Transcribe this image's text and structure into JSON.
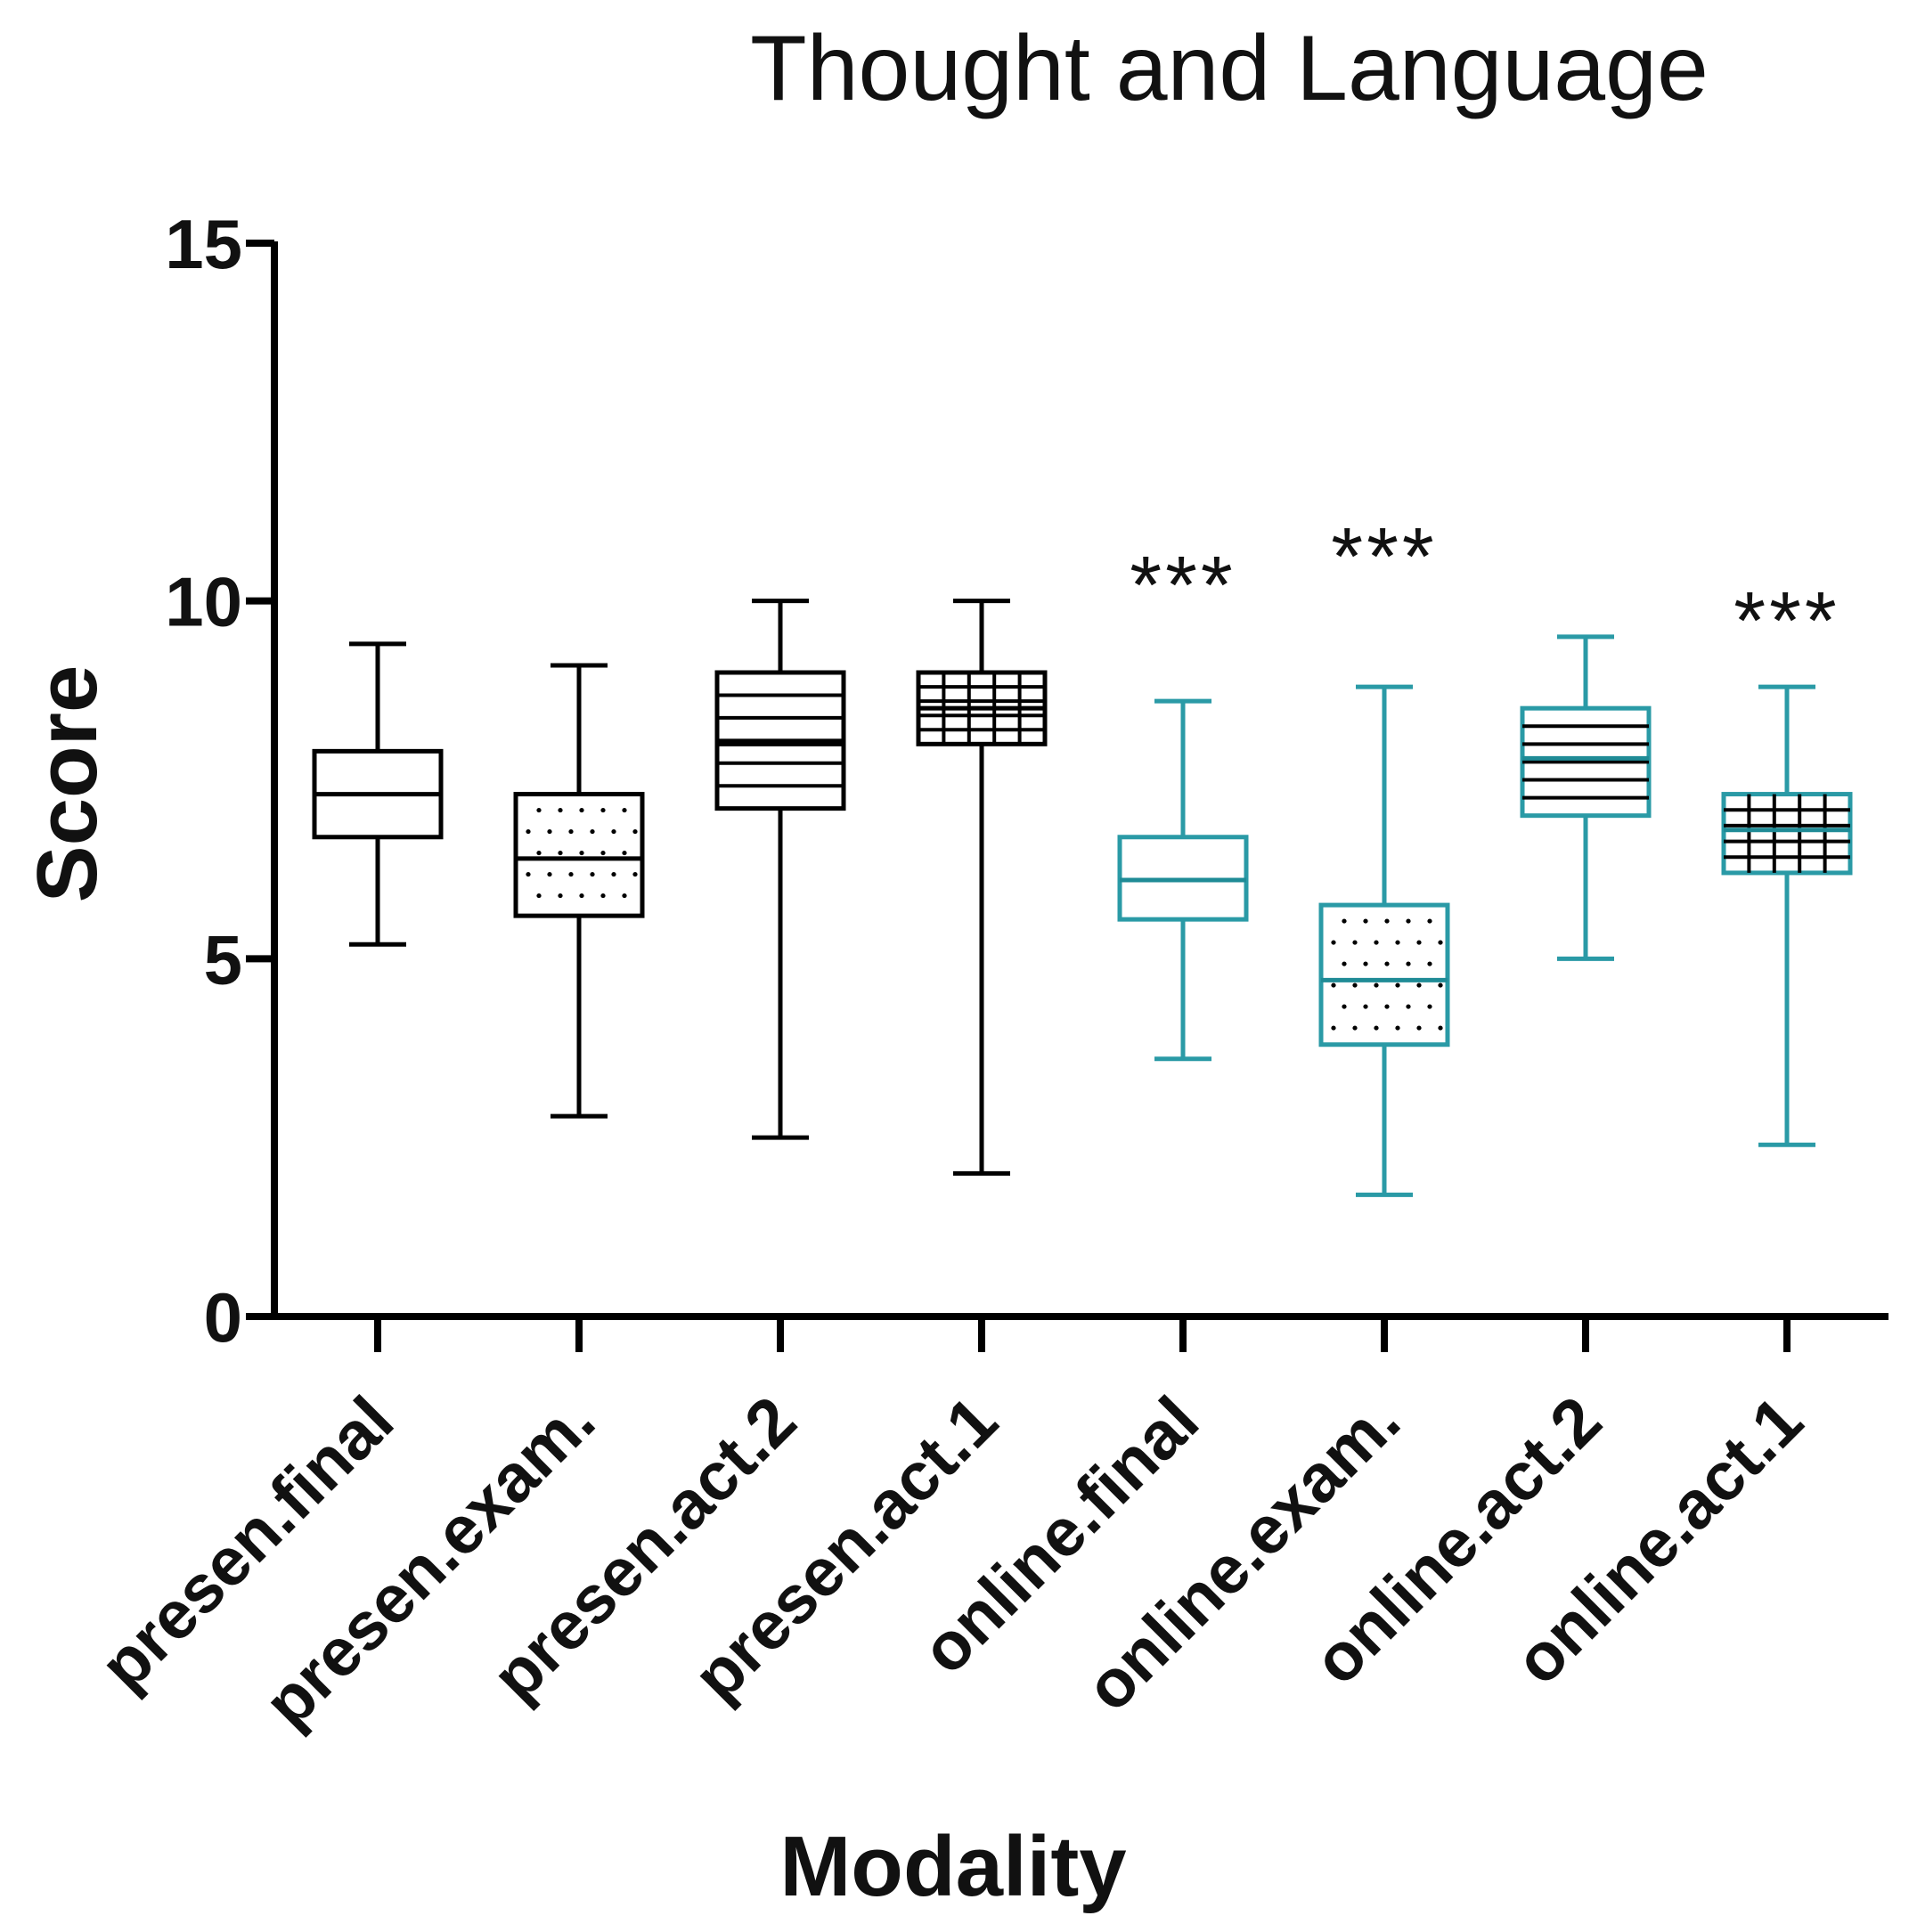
{
  "chart_data": {
    "type": "boxplot",
    "title": "Thought and Language",
    "xlabel": "Modality",
    "ylabel": "Score",
    "ylim": [
      0,
      15
    ],
    "yticks": [
      0,
      5,
      10,
      15
    ],
    "categories": [
      "presen.final",
      "presen.exam.",
      "presen.act.2",
      "presen.act.1",
      "online.final",
      "online.exam.",
      "online.act.2",
      "online.act.1"
    ],
    "boxes": [
      {
        "label": "presen.final",
        "min": 5.2,
        "q1": 6.7,
        "median": 7.3,
        "q3": 7.9,
        "max": 9.4,
        "color": "#000000",
        "pattern": "none",
        "significance": ""
      },
      {
        "label": "presen.exam.",
        "min": 2.8,
        "q1": 5.6,
        "median": 6.4,
        "q3": 7.3,
        "max": 9.1,
        "color": "#000000",
        "pattern": "dots",
        "significance": ""
      },
      {
        "label": "presen.act.2",
        "min": 2.5,
        "q1": 7.1,
        "median": 8.0,
        "q3": 9.0,
        "max": 10.0,
        "color": "#000000",
        "pattern": "hlines",
        "significance": ""
      },
      {
        "label": "presen.act.1",
        "min": 2.0,
        "q1": 8.0,
        "median": 8.5,
        "q3": 9.0,
        "max": 10.0,
        "color": "#000000",
        "pattern": "grid",
        "significance": ""
      },
      {
        "label": "online.final",
        "min": 3.6,
        "q1": 5.55,
        "median": 6.1,
        "q3": 6.7,
        "max": 8.6,
        "color": "#2a9aa6",
        "pattern": "none",
        "significance": "***"
      },
      {
        "label": "online.exam.",
        "min": 1.7,
        "q1": 3.8,
        "median": 4.7,
        "q3": 5.75,
        "max": 8.8,
        "color": "#2a9aa6",
        "pattern": "dots",
        "significance": "***"
      },
      {
        "label": "online.act.2",
        "min": 5.0,
        "q1": 7.0,
        "median": 7.8,
        "q3": 8.5,
        "max": 9.5,
        "color": "#2a9aa6",
        "pattern": "hlines",
        "significance": ""
      },
      {
        "label": "online.act.1",
        "min": 2.4,
        "q1": 6.2,
        "median": 6.8,
        "q3": 7.3,
        "max": 8.8,
        "color": "#2a9aa6",
        "pattern": "grid",
        "significance": "***"
      }
    ],
    "significance_levels": [
      10.7,
      11.1,
      10.2
    ]
  }
}
